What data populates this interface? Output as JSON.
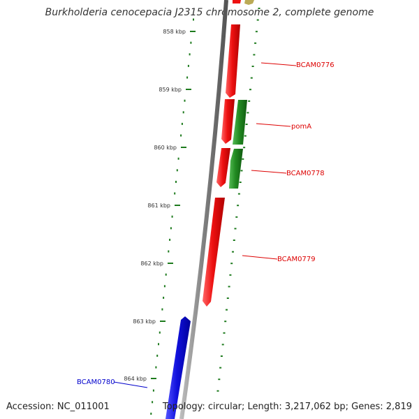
{
  "title": "Burkholderia cenocepacia J2315 chromosome 2, complete genome",
  "accession": "Accession: NC_011001",
  "summary": "Topology: circular; Length: 3,217,062 bp; Genes: 2,819",
  "colors": {
    "forward_gene": "#ee1111",
    "reverse_gene": "#228b22",
    "other_gene": "#1111dd",
    "backbone": "#808080",
    "tick": "#1e7b1e",
    "label_red": "#dd0000",
    "label_blue": "#0000cc"
  },
  "ticks": [
    {
      "label": "858 kbp"
    },
    {
      "label": "859 kbp"
    },
    {
      "label": "860 kbp"
    },
    {
      "label": "861 kbp"
    },
    {
      "label": "862 kbp"
    },
    {
      "label": "863 kbp"
    },
    {
      "label": "864 kbp"
    }
  ],
  "genes": [
    {
      "label": "BCAM0776",
      "strand": "forward"
    },
    {
      "label": "pomA",
      "strand": "reverse"
    },
    {
      "label": "BCAM0778",
      "strand": "forward"
    },
    {
      "label": "BCAM0779",
      "strand": "forward"
    },
    {
      "label": "BCAM0780",
      "strand": "other"
    }
  ]
}
